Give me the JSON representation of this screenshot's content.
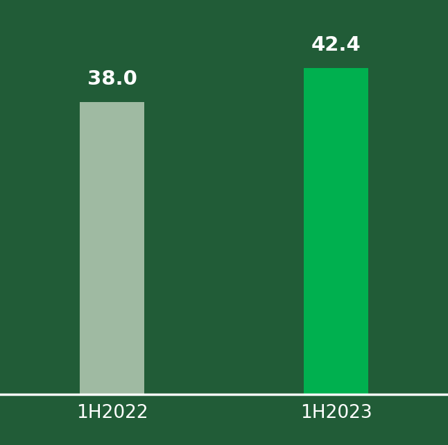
{
  "chart_data": {
    "type": "bar",
    "categories": [
      "1H2022",
      "1H2023"
    ],
    "values": [
      38.0,
      42.4
    ],
    "colors": [
      "#9fbaa2",
      "#00b04f"
    ],
    "ylim": [
      0,
      51
    ],
    "data_labels": true,
    "tick_labels": "x",
    "grid": false
  }
}
